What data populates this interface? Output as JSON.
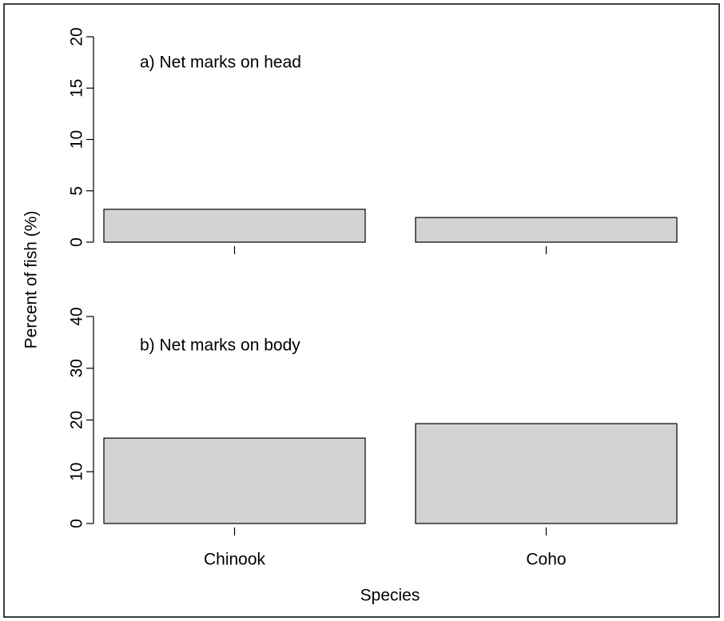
{
  "chart_data": [
    {
      "type": "bar",
      "annotation": "a) Net marks on head",
      "ylabel": "Percent of fish (%)",
      "values": [
        3.2,
        2.4
      ],
      "color": "#d3d3d3",
      "ylim": [
        0,
        20
      ],
      "yticks": [
        0,
        5,
        10,
        15,
        20
      ]
    },
    {
      "type": "bar",
      "annotation": "b) Net marks on body",
      "xlabel": "Species",
      "categories": [
        "Chinook",
        "Coho"
      ],
      "values": [
        16.5,
        19.3
      ],
      "color": "#d3d3d3",
      "ylim": [
        0,
        40
      ],
      "yticks": [
        0,
        10,
        20,
        30,
        40
      ]
    }
  ]
}
